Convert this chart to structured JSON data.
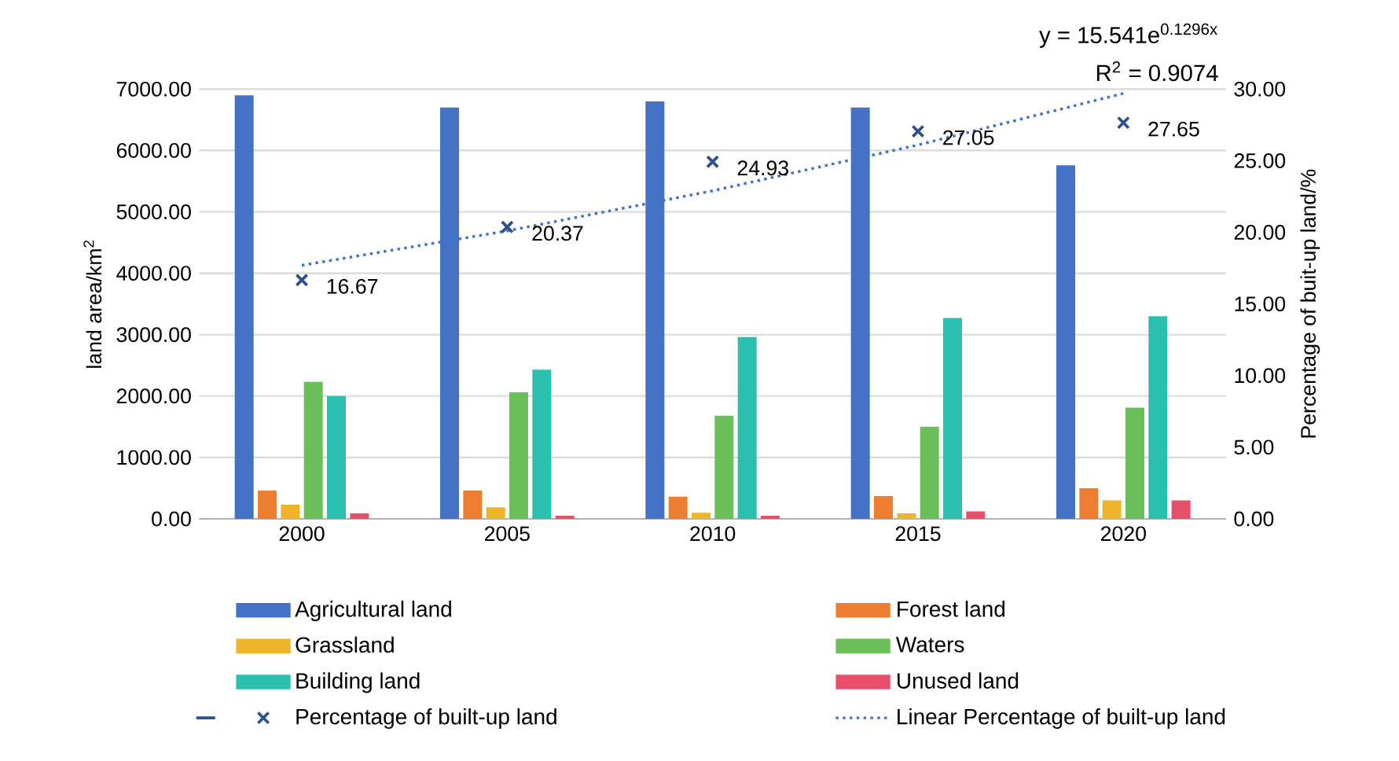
{
  "chart_data": {
    "type": "bar",
    "categories": [
      "2000",
      "2005",
      "2010",
      "2015",
      "2020"
    ],
    "ylabel": "land area/km$^{2}$",
    "y2label": "Percentage of buit-up land/%",
    "ylim": [
      0,
      7000
    ],
    "yticks": [
      {
        "value": 0,
        "label": "0.00"
      },
      {
        "value": 1000,
        "label": "1000.00"
      },
      {
        "value": 2000,
        "label": "2000.00"
      },
      {
        "value": 3000,
        "label": "3000.00"
      },
      {
        "value": 4000,
        "label": "4000.00"
      },
      {
        "value": 5000,
        "label": "5000.00"
      },
      {
        "value": 6000,
        "label": "6000.00"
      },
      {
        "value": 7000,
        "label": "7000.00"
      }
    ],
    "y2lim": [
      0,
      30
    ],
    "y2ticks": [
      {
        "value": 0,
        "label": "0.00"
      },
      {
        "value": 5,
        "label": "5.00"
      },
      {
        "value": 10,
        "label": "10.00"
      },
      {
        "value": 15,
        "label": "15.00"
      },
      {
        "value": 20,
        "label": "20.00"
      },
      {
        "value": 25,
        "label": "25.00"
      },
      {
        "value": 30,
        "label": "30.00"
      }
    ],
    "grid": "y",
    "legend": "bottom",
    "annotations": [
      "y = 15.541e$^{0.1296x}$",
      "R$^{2}$ = 0.9074"
    ],
    "series": [
      {
        "name": "Agricultural land",
        "color": "#4472c4",
        "values": [
          6900,
          6700,
          6800,
          6700,
          5760
        ]
      },
      {
        "name": "Forest land",
        "color": "#ed7d31",
        "values": [
          460,
          460,
          360,
          370,
          500
        ]
      },
      {
        "name": "Grassland",
        "color": "#f0b429",
        "values": [
          230,
          190,
          100,
          90,
          300
        ]
      },
      {
        "name": "Waters",
        "color": "#6abf59",
        "values": [
          2230,
          2060,
          1680,
          1500,
          1810
        ]
      },
      {
        "name": "Building land",
        "color": "#2bbfb0",
        "values": [
          2000,
          2430,
          2960,
          3270,
          3300
        ]
      },
      {
        "name": "Unused land",
        "color": "#e8506a",
        "values": [
          90,
          50,
          50,
          120,
          300
        ]
      },
      {
        "name": "Percentage of built-up land",
        "type": "scatter",
        "axis": "y2",
        "marker": "cross",
        "color": "#2f4f8f",
        "values": [
          16.67,
          20.37,
          24.93,
          27.05,
          27.65
        ],
        "value_labels": [
          "16.67",
          "20.37",
          "24.93",
          "27.05",
          "27.65"
        ]
      },
      {
        "name": "Linear Percentage of built-up land",
        "type": "line",
        "axis": "y2",
        "line_style": "dotted",
        "marker": "none",
        "color": "#4472c4",
        "values": [
          17.7,
          20.1,
          22.9,
          26.1,
          29.7
        ]
      }
    ]
  }
}
